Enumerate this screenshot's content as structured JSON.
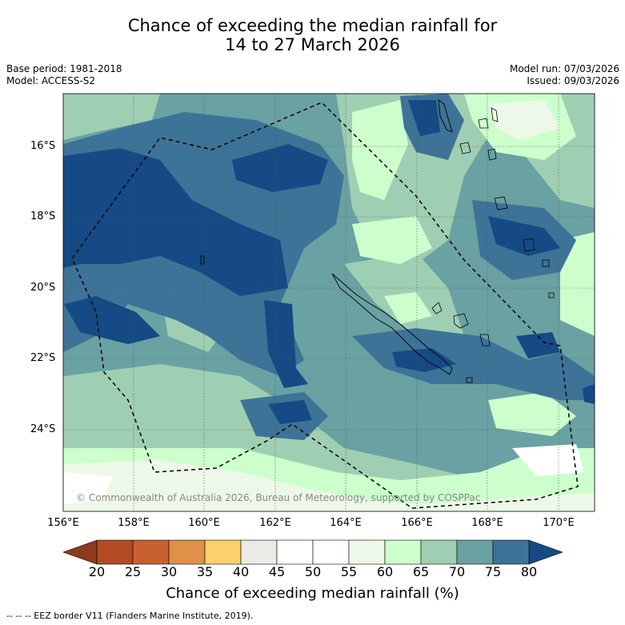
{
  "title_line1": "Chance of exceeding the median rainfall for",
  "title_line2": "14 to 27 March 2026",
  "base_period": "Base period: 1981-2018",
  "model": "Model: ACCESS-S2",
  "model_run": "Model run: 07/03/2026",
  "issued": "Issued: 09/03/2026",
  "copyright": "© Commonwealth of Australia 2026, Bureau of Meteorology, supported by COSPPac",
  "lat_labels": [
    "16°S",
    "18°S",
    "20°S",
    "22°S",
    "24°S"
  ],
  "lon_labels": [
    "156°E",
    "158°E",
    "160°E",
    "162°E",
    "164°E",
    "166°E",
    "168°E",
    "170°E"
  ],
  "colorbar": {
    "ticks": [
      "20",
      "25",
      "30",
      "35",
      "40",
      "45",
      "50",
      "55",
      "60",
      "65",
      "70",
      "75",
      "80"
    ],
    "colors": [
      "#b34a24",
      "#c9612f",
      "#e09048",
      "#fdd06b",
      "#ebebe5",
      "#ffffff",
      "#ffffff",
      "#edf8e9",
      "#ccffcc",
      "#9fcfb3",
      "#6aa1a2",
      "#3d7397"
    ],
    "under_color": "#8f3a1d",
    "over_color": "#154a85",
    "label": "Chance of exceeding median rainfall (%)"
  },
  "footnote": "--  --  -- EEZ border V11 (Flanders Marine Institute, 2019)."
}
